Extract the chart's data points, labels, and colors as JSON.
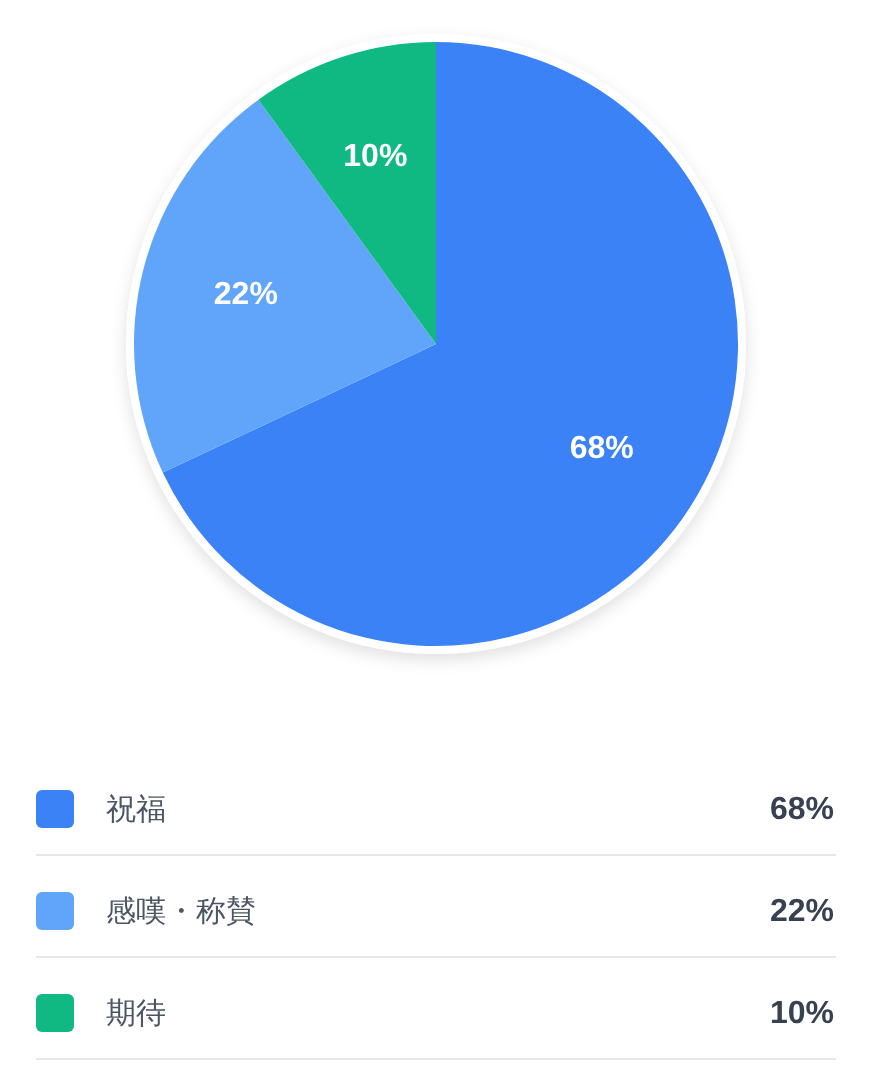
{
  "chart_data": {
    "type": "pie",
    "categories": [
      "祝福",
      "感嘆・称賛",
      "期待"
    ],
    "values": [
      68,
      22,
      10
    ],
    "colors": [
      "#3b82f6",
      "#60a5fa",
      "#10b981"
    ],
    "value_labels": [
      "68%",
      "22%",
      "10%"
    ],
    "legend": "bottom"
  }
}
